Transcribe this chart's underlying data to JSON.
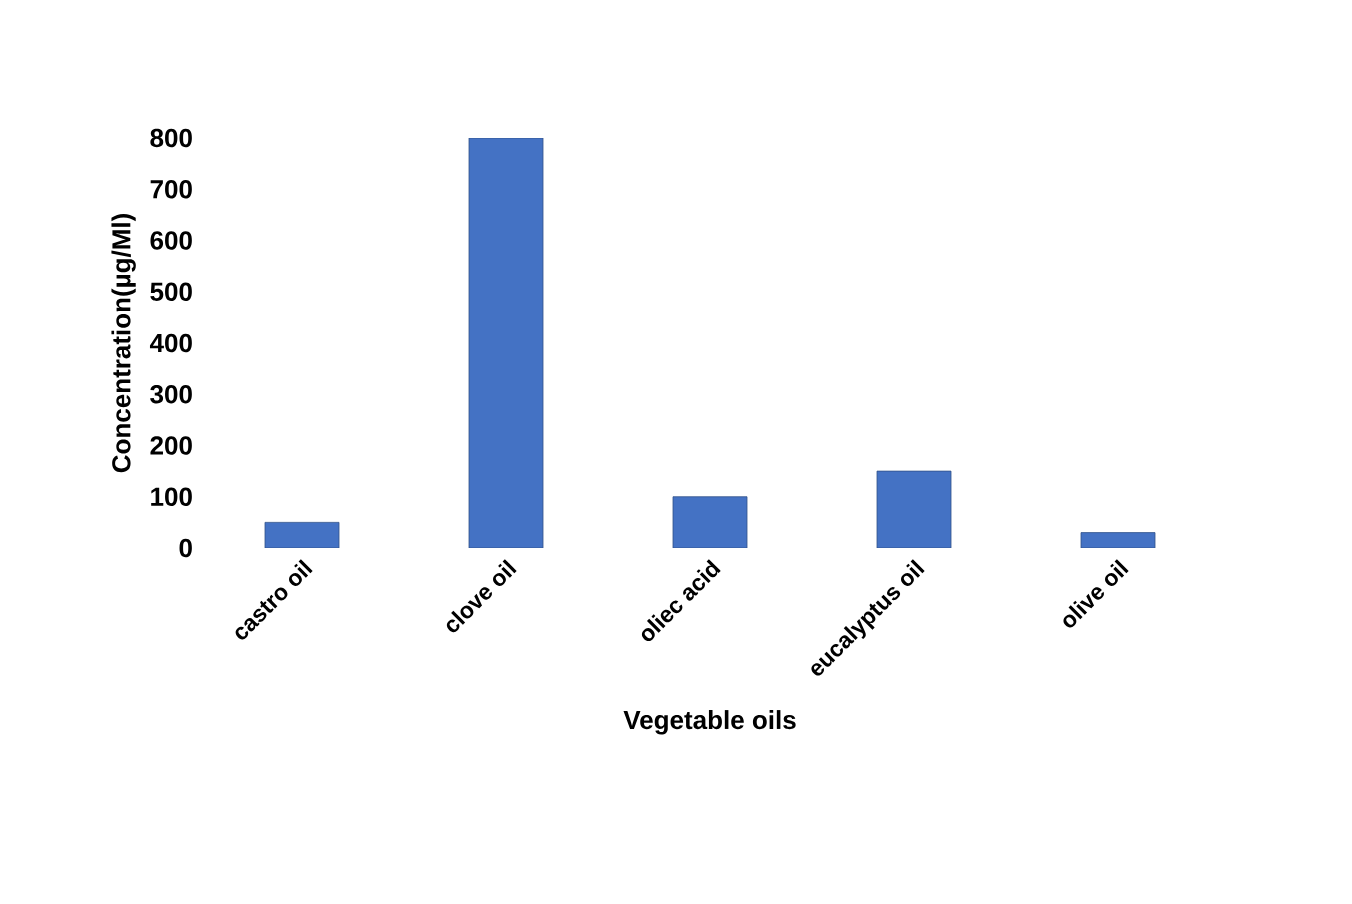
{
  "chart_data": {
    "type": "bar",
    "xlabel": "Vegetable oils",
    "ylabel": "Concentration(µg/Ml)",
    "categories": [
      "castro oil",
      "clove oil",
      "oliec acid",
      "eucalyptus oil",
      "olive oil"
    ],
    "values": [
      50,
      800,
      100,
      150,
      30
    ],
    "color": "#4472c4",
    "ylim": [
      0,
      800
    ],
    "yticks": [
      0,
      100,
      200,
      300,
      400,
      500,
      600,
      700,
      800
    ],
    "grid": false
  }
}
